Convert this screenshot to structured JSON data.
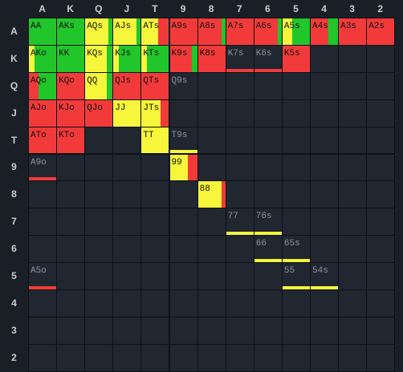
{
  "colors": {
    "green": "#21c62a",
    "yellow": "#f6f63a",
    "red": "#f23a3a",
    "background": "#1a1f27",
    "cell": "#202731",
    "header_text": "#c9ccd1",
    "dim_text": "#8e939b"
  },
  "columns": [
    "A",
    "K",
    "Q",
    "J",
    "T",
    "9",
    "8",
    "7",
    "6",
    "5",
    "4",
    "3",
    "2"
  ],
  "rows": [
    "A",
    "K",
    "Q",
    "J",
    "T",
    "9",
    "8",
    "7",
    "6",
    "5",
    "4",
    "3",
    "2"
  ],
  "cells": [
    {
      "row": 0,
      "col": 0,
      "label": "AA",
      "fill": [
        [
          "green",
          1
        ]
      ]
    },
    {
      "row": 0,
      "col": 1,
      "label": "AKs",
      "fill": [
        [
          "green",
          1
        ]
      ]
    },
    {
      "row": 0,
      "col": 2,
      "label": "AQs",
      "fill": [
        [
          "yellow",
          0.85
        ],
        [
          "green",
          0.15
        ]
      ]
    },
    {
      "row": 0,
      "col": 3,
      "label": "AJs",
      "fill": [
        [
          "yellow",
          0.85
        ],
        [
          "green",
          0.15
        ]
      ]
    },
    {
      "row": 0,
      "col": 4,
      "label": "ATs",
      "fill": [
        [
          "yellow",
          0.6
        ],
        [
          "red",
          0.4
        ]
      ]
    },
    {
      "row": 0,
      "col": 5,
      "label": "A9s",
      "fill": [
        [
          "red",
          1
        ]
      ]
    },
    {
      "row": 0,
      "col": 6,
      "label": "A8s",
      "fill": [
        [
          "red",
          0.85
        ],
        [
          "green",
          0.15
        ]
      ]
    },
    {
      "row": 0,
      "col": 7,
      "label": "A7s",
      "fill": [
        [
          "red",
          1
        ]
      ]
    },
    {
      "row": 0,
      "col": 8,
      "label": "A6s",
      "fill": [
        [
          "red",
          0.85
        ],
        [
          "green",
          0.15
        ]
      ]
    },
    {
      "row": 0,
      "col": 9,
      "label": "A5s",
      "fill": [
        [
          "yellow",
          0.35
        ],
        [
          "green",
          0.65
        ]
      ]
    },
    {
      "row": 0,
      "col": 10,
      "label": "A4s",
      "fill": [
        [
          "red",
          0.65
        ],
        [
          "green",
          0.35
        ]
      ]
    },
    {
      "row": 0,
      "col": 11,
      "label": "A3s",
      "fill": [
        [
          "red",
          1
        ]
      ]
    },
    {
      "row": 0,
      "col": 12,
      "label": "A2s",
      "fill": [
        [
          "red",
          1
        ]
      ]
    },
    {
      "row": 1,
      "col": 0,
      "label": "AKo",
      "fill": [
        [
          "yellow",
          0.2
        ],
        [
          "green",
          0.8
        ]
      ]
    },
    {
      "row": 1,
      "col": 1,
      "label": "KK",
      "fill": [
        [
          "green",
          1
        ]
      ]
    },
    {
      "row": 1,
      "col": 2,
      "label": "KQs",
      "fill": [
        [
          "yellow",
          0.8
        ],
        [
          "green",
          0.2
        ]
      ]
    },
    {
      "row": 1,
      "col": 3,
      "label": "KJs",
      "fill": [
        [
          "yellow",
          0.2
        ],
        [
          "green",
          0.8
        ]
      ]
    },
    {
      "row": 1,
      "col": 4,
      "label": "KTs",
      "fill": [
        [
          "yellow",
          0.2
        ],
        [
          "green",
          0.8
        ]
      ]
    },
    {
      "row": 1,
      "col": 5,
      "label": "K9s",
      "fill": [
        [
          "red",
          0.8
        ],
        [
          "green",
          0.2
        ]
      ]
    },
    {
      "row": 1,
      "col": 6,
      "label": "K8s",
      "fill": [
        [
          "red",
          1
        ]
      ]
    },
    {
      "row": 1,
      "col": 7,
      "label": "K7s",
      "fill": [],
      "bar": [
        "red",
        1
      ],
      "dim": true
    },
    {
      "row": 1,
      "col": 8,
      "label": "K6s",
      "fill": [],
      "bar": [
        "red",
        1
      ],
      "dim": true
    },
    {
      "row": 1,
      "col": 9,
      "label": "K5s",
      "fill": [
        [
          "red",
          1
        ]
      ]
    },
    {
      "row": 2,
      "col": 0,
      "label": "AQo",
      "fill": [
        [
          "red",
          0.35
        ],
        [
          "green",
          0.65
        ]
      ]
    },
    {
      "row": 2,
      "col": 1,
      "label": "KQo",
      "fill": [
        [
          "red",
          1
        ]
      ]
    },
    {
      "row": 2,
      "col": 2,
      "label": "QQ",
      "fill": [
        [
          "yellow",
          0.8
        ],
        [
          "green",
          0.2
        ]
      ]
    },
    {
      "row": 2,
      "col": 3,
      "label": "QJs",
      "fill": [
        [
          "red",
          1
        ]
      ]
    },
    {
      "row": 2,
      "col": 4,
      "label": "QTs",
      "fill": [
        [
          "red",
          1
        ]
      ]
    },
    {
      "row": 2,
      "col": 5,
      "label": "Q9s",
      "fill": [],
      "dim": true
    },
    {
      "row": 3,
      "col": 0,
      "label": "AJo",
      "fill": [
        [
          "red",
          1
        ]
      ]
    },
    {
      "row": 3,
      "col": 1,
      "label": "KJo",
      "fill": [
        [
          "red",
          1
        ]
      ]
    },
    {
      "row": 3,
      "col": 2,
      "label": "QJo",
      "fill": [
        [
          "red",
          1
        ]
      ]
    },
    {
      "row": 3,
      "col": 3,
      "label": "JJ",
      "fill": [
        [
          "yellow",
          1
        ]
      ]
    },
    {
      "row": 3,
      "col": 4,
      "label": "JTs",
      "fill": [
        [
          "yellow",
          0.7
        ],
        [
          "red",
          0.3
        ]
      ]
    },
    {
      "row": 4,
      "col": 0,
      "label": "ATo",
      "fill": [
        [
          "red",
          1
        ]
      ]
    },
    {
      "row": 4,
      "col": 1,
      "label": "KTo",
      "fill": [
        [
          "red",
          1
        ]
      ]
    },
    {
      "row": 4,
      "col": 4,
      "label": "TT",
      "fill": [
        [
          "yellow",
          1
        ]
      ]
    },
    {
      "row": 4,
      "col": 5,
      "label": "T9s",
      "fill": [],
      "bar": [
        "yellow",
        1
      ],
      "dim": true
    },
    {
      "row": 5,
      "col": 0,
      "label": "A9o",
      "fill": [],
      "bar": [
        "red",
        1
      ],
      "dim": true
    },
    {
      "row": 5,
      "col": 5,
      "label": "99",
      "fill": [
        [
          "yellow",
          0.65
        ],
        [
          "red",
          0.35
        ]
      ]
    },
    {
      "row": 6,
      "col": 6,
      "label": "88",
      "fill": [
        [
          "yellow",
          0.85
        ],
        [
          "red",
          0.15
        ]
      ]
    },
    {
      "row": 7,
      "col": 7,
      "label": "77",
      "fill": [],
      "bar": [
        "yellow",
        1
      ],
      "dim": true
    },
    {
      "row": 7,
      "col": 8,
      "label": "76s",
      "fill": [],
      "bar": [
        "yellow",
        1
      ],
      "dim": true
    },
    {
      "row": 8,
      "col": 8,
      "label": "66",
      "fill": [],
      "bar": [
        "yellow",
        1
      ],
      "dim": true
    },
    {
      "row": 8,
      "col": 9,
      "label": "65s",
      "fill": [],
      "bar": [
        "yellow",
        1
      ],
      "dim": true
    },
    {
      "row": 9,
      "col": 0,
      "label": "A5o",
      "fill": [],
      "bar": [
        "red",
        1
      ],
      "dim": true
    },
    {
      "row": 9,
      "col": 9,
      "label": "55",
      "fill": [],
      "bar": [
        "yellow",
        1
      ],
      "dim": true
    },
    {
      "row": 9,
      "col": 10,
      "label": "54s",
      "fill": [],
      "bar": [
        "yellow",
        1
      ],
      "dim": true
    }
  ]
}
